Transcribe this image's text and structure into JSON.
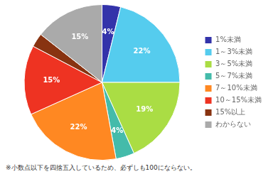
{
  "chart_data": {
    "type": "pie",
    "categories": [
      "1%未満",
      "1～3%未満",
      "3～5%未満",
      "5～7%未満",
      "7～10%未満",
      "10～15%未満",
      "15%以上",
      "わからない"
    ],
    "values": [
      4,
      22,
      19,
      4,
      22,
      15,
      3,
      15
    ],
    "value_labels": [
      "4%",
      "22%",
      "19%",
      "4%",
      "22%",
      "15%",
      null,
      "15%"
    ],
    "data_labels": true,
    "colors": [
      "#3333aa",
      "#55ccee",
      "#aadd44",
      "#44bbaa",
      "#ff8822",
      "#ee3322",
      "#883311",
      "#aaaaaa"
    ],
    "legend": "right",
    "annotations": [
      "※小数点以下を四捨五入しているため、必ずしも100にならない。"
    ]
  }
}
